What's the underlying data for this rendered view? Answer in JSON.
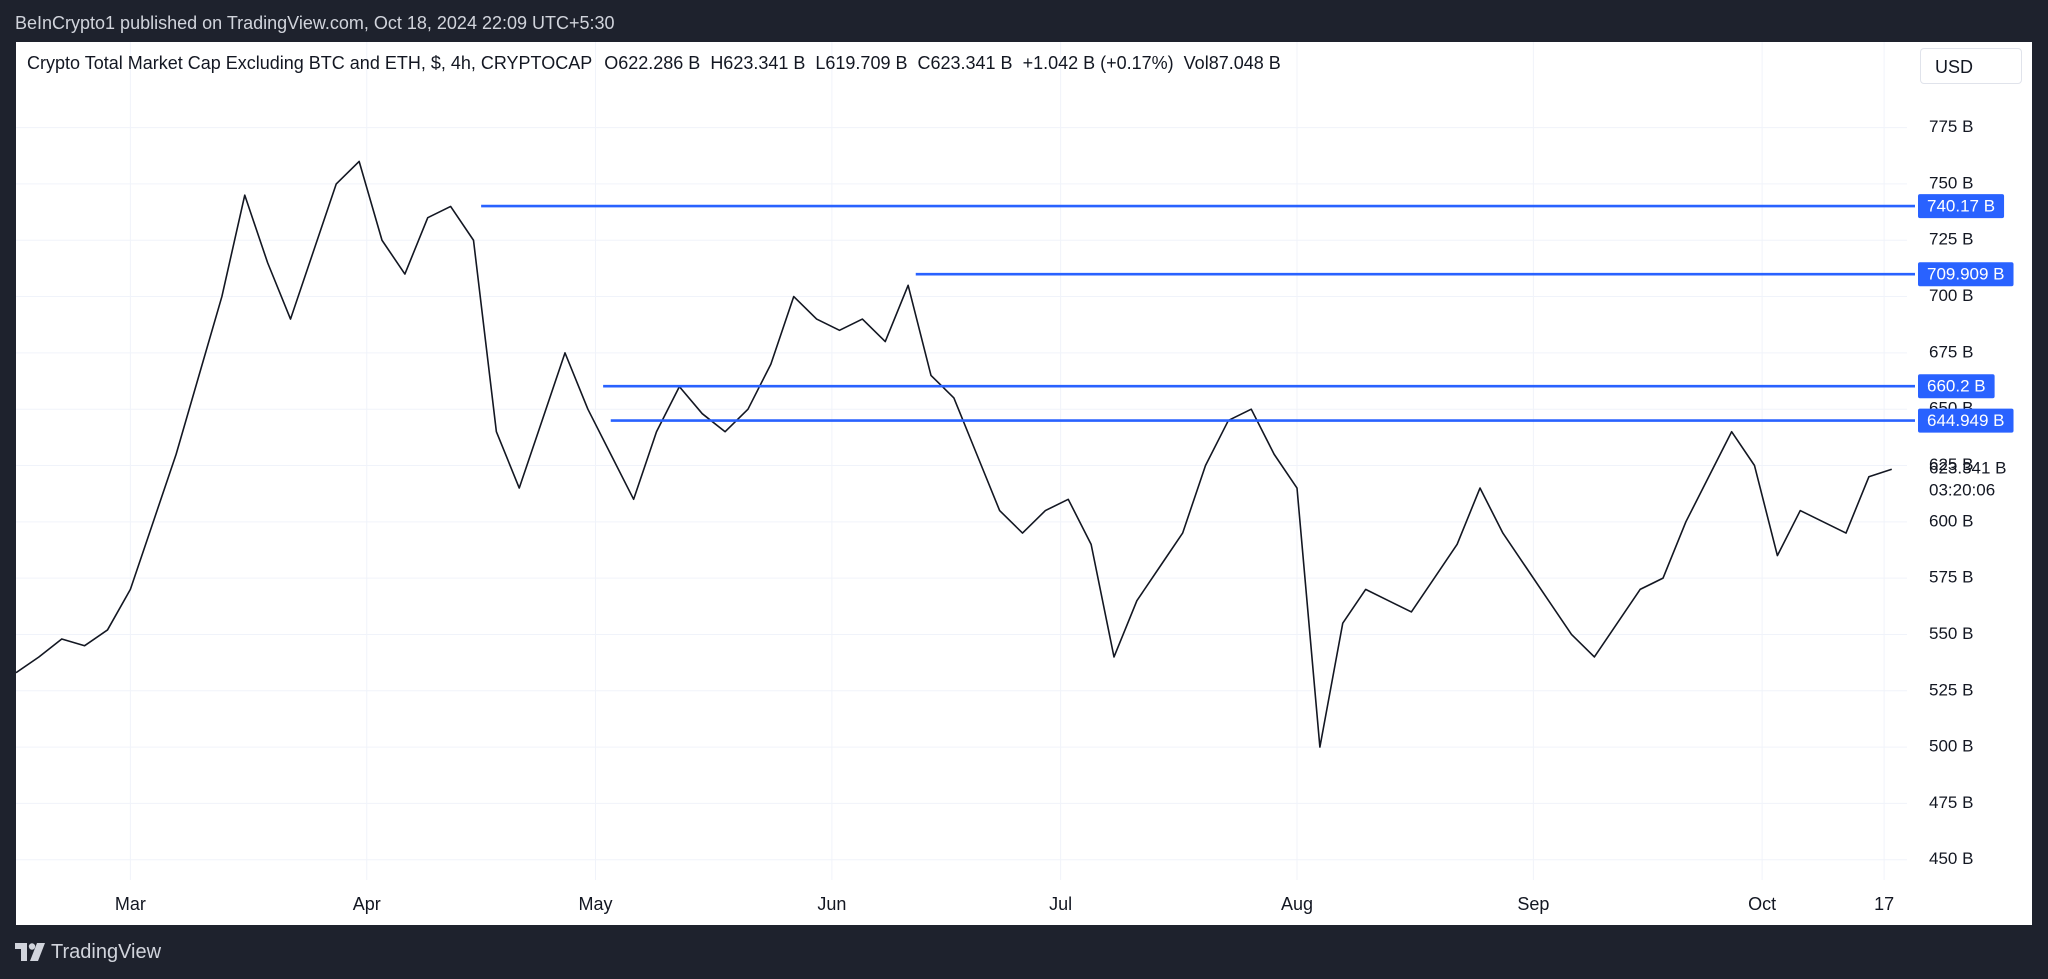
{
  "header": {
    "published": "BeInCrypto1 published on TradingView.com, Oct 18, 2024 22:09 UTC+5:30"
  },
  "toolbar": {
    "currency": "USD"
  },
  "footer": {
    "brand": "TradingView"
  },
  "chart_data": {
    "type": "line",
    "title": "Crypto Total Market Cap Excluding BTC and ETH, $, 4h, CRYPTOCAP",
    "legend_values": [
      "O622.286 B",
      "H623.341 B",
      "L619.709 B",
      "C623.341 B",
      "+1.042 B (+0.17%)",
      "Vol87.048 B"
    ],
    "x": [
      46,
      49,
      52,
      55,
      58,
      61,
      64,
      67,
      70,
      73,
      76,
      79,
      82,
      85,
      88,
      91,
      94,
      97,
      100,
      103,
      106,
      109,
      112,
      115,
      118,
      121,
      124,
      127,
      130,
      133,
      136,
      139,
      142,
      145,
      148,
      151,
      154,
      157,
      160,
      163,
      166,
      169,
      172,
      175,
      178,
      181,
      184,
      187,
      190,
      193,
      196,
      199,
      202,
      205,
      208,
      211,
      214,
      217,
      220,
      223,
      226,
      229,
      232,
      235,
      238,
      241,
      244,
      247,
      250,
      253,
      256,
      259,
      262,
      265,
      268,
      271,
      274,
      277,
      280,
      283,
      286,
      289,
      292
    ],
    "series": [
      {
        "color": "#131722",
        "values": [
          533,
          540,
          548,
          545,
          552,
          570,
          600,
          630,
          665,
          700,
          745,
          715,
          690,
          720,
          750,
          760,
          725,
          710,
          735,
          740,
          725,
          640,
          615,
          645,
          675,
          650,
          630,
          610,
          640,
          660,
          648,
          640,
          650,
          670,
          700,
          690,
          685,
          690,
          680,
          705,
          665,
          655,
          630,
          605,
          595,
          605,
          610,
          590,
          540,
          565,
          580,
          595,
          625,
          645,
          650,
          630,
          615,
          500,
          555,
          570,
          565,
          560,
          575,
          590,
          615,
          595,
          580,
          565,
          550,
          540,
          555,
          570,
          575,
          600,
          620,
          640,
          625,
          585,
          605,
          600,
          595,
          620,
          623.341
        ]
      }
    ],
    "last_value_label": "623.341 B",
    "countdown": "03:20:06",
    "levels": [
      {
        "value": 740.17,
        "label": "740.17 B",
        "start": 107
      },
      {
        "value": 709.909,
        "label": "709.909 B",
        "start": 164
      },
      {
        "value": 660.2,
        "label": "660.2 B",
        "start": 123
      },
      {
        "value": 644.949,
        "label": "644.949 B",
        "start": 124
      }
    ],
    "level_color": "#2962ff",
    "xlim": [
      46,
      294
    ],
    "ylim": [
      441,
      813
    ],
    "xticks": [
      {
        "value": 61,
        "label": "Mar"
      },
      {
        "value": 92,
        "label": "Apr"
      },
      {
        "value": 122,
        "label": "May"
      },
      {
        "value": 153,
        "label": "Jun"
      },
      {
        "value": 183,
        "label": "Jul"
      },
      {
        "value": 214,
        "label": "Aug"
      },
      {
        "value": 245,
        "label": "Sep"
      },
      {
        "value": 275,
        "label": "Oct"
      },
      {
        "value": 291,
        "label": "17"
      }
    ],
    "yticks": [
      {
        "value": 450,
        "label": "450 B"
      },
      {
        "value": 475,
        "label": "475 B"
      },
      {
        "value": 500,
        "label": "500 B"
      },
      {
        "value": 525,
        "label": "525 B"
      },
      {
        "value": 550,
        "label": "550 B"
      },
      {
        "value": 575,
        "label": "575 B"
      },
      {
        "value": 600,
        "label": "600 B"
      },
      {
        "value": 625,
        "label": "625 B"
      },
      {
        "value": 650,
        "label": "650 B"
      },
      {
        "value": 675,
        "label": "675 B"
      },
      {
        "value": 700,
        "label": "700 B"
      },
      {
        "value": 725,
        "label": "725 B"
      },
      {
        "value": 750,
        "label": "750 B"
      },
      {
        "value": 775,
        "label": "775 B"
      }
    ],
    "grid": true
  }
}
